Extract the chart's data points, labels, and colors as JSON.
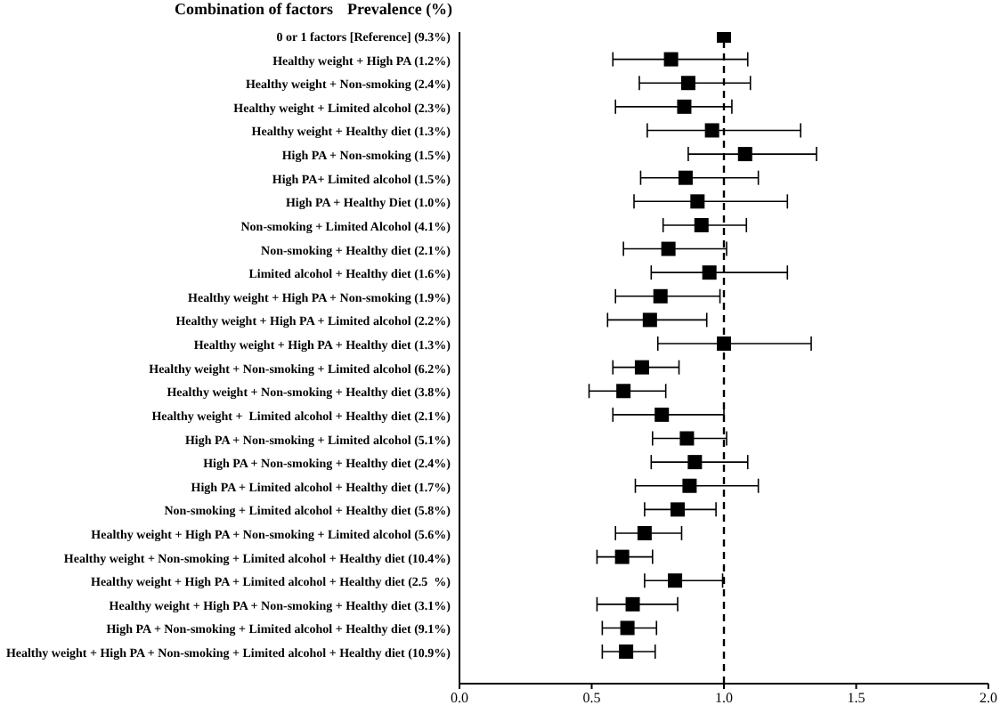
{
  "chart_data": {
    "type": "scatter",
    "orientation": "horizontal",
    "ylabel": "Combination of factors",
    "annotations": [
      "Prevalence (%)"
    ],
    "categories": [
      "0 or 1 factors [Reference] (9.3%)",
      "Healthy weight + High PA (1.2%)",
      "Healthy weight + Non-smoking (2.4%)",
      "Healthy weight + Limited alcohol (2.3%)",
      "Healthy weight + Healthy diet (1.3%)",
      "High PA + Non-smoking (1.5%)",
      "High PA+ Limited alcohol (1.5%)",
      "High PA + Healthy Diet (1.0%)",
      "Non-smoking + Limited Alcohol (4.1%)",
      "Non-smoking + Healthy diet (2.1%)",
      "Limited alcohol + Healthy diet (1.6%)",
      "Healthy weight + High PA + Non-smoking (1.9%)",
      "Healthy weight + High PA + Limited alcohol (2.2%)",
      "Healthy weight + High PA + Healthy diet (1.3%)",
      "Healthy weight + Non-smoking + Limited alcohol (6.2%)",
      "Healthy weight + Non-smoking + Healthy diet (3.8%)",
      "Healthy weight +  Limited alcohol + Healthy diet (2.1%)",
      "High PA + Non-smoking + Limited alcohol (5.1%)",
      "High PA + Non-smoking + Healthy diet (2.4%)",
      "High PA + Limited alcohol + Healthy diet (1.7%)",
      "Non-smoking + Limited alcohol + Healthy diet (5.8%)",
      "Healthy weight + High PA + Non-smoking + Limited alcohol (5.6%)",
      "Healthy weight + Non-smoking + Limited alcohol + Healthy diet (10.4%)",
      "Healthy weight + High PA + Limited alcohol + Healthy diet (2.5  %)",
      "Healthy weight + High PA + Non-smoking + Healthy diet (3.1%)",
      "High PA + Non-smoking + Limited alcohol + Healthy diet (9.1%)",
      "Healthy weight + High PA + Non-smoking + Limited alcohol + Healthy diet (10.9%)"
    ],
    "values": [
      1.0,
      0.8,
      0.865,
      0.85,
      0.955,
      1.08,
      0.855,
      0.9,
      0.915,
      0.79,
      0.945,
      0.76,
      0.72,
      1.0,
      0.69,
      0.62,
      0.765,
      0.86,
      0.89,
      0.87,
      0.825,
      0.7,
      0.615,
      0.815,
      0.655,
      0.635,
      0.63
    ],
    "errors": [
      null,
      [
        0.58,
        1.09
      ],
      [
        0.68,
        1.1
      ],
      [
        0.59,
        1.03
      ],
      [
        0.71,
        1.29
      ],
      [
        0.865,
        1.35
      ],
      [
        0.685,
        1.13
      ],
      [
        0.66,
        1.24
      ],
      [
        0.77,
        1.085
      ],
      [
        0.62,
        1.01
      ],
      [
        0.725,
        1.24
      ],
      [
        0.59,
        0.985
      ],
      [
        0.56,
        0.935
      ],
      [
        0.75,
        1.33
      ],
      [
        0.58,
        0.83
      ],
      [
        0.49,
        0.78
      ],
      [
        0.58,
        1.0
      ],
      [
        0.73,
        1.01
      ],
      [
        0.725,
        1.09
      ],
      [
        0.665,
        1.13
      ],
      [
        0.7,
        0.97
      ],
      [
        0.59,
        0.84
      ],
      [
        0.52,
        0.73
      ],
      [
        0.7,
        0.995
      ],
      [
        0.52,
        0.825
      ],
      [
        0.54,
        0.745
      ],
      [
        0.54,
        0.74
      ]
    ],
    "color": "#000000",
    "marker": "square",
    "xlim": [
      0,
      2
    ],
    "xticks": [
      {
        "value": 0,
        "label": "0.0"
      },
      {
        "value": 0.5,
        "label": "0.5"
      },
      {
        "value": 1,
        "label": "1.0"
      },
      {
        "value": 1.5,
        "label": "1.5"
      },
      {
        "value": 2,
        "label": "2.0"
      }
    ],
    "ref_lines": [
      {
        "axis": "x",
        "value": 1,
        "line_style": "dashed",
        "color": "#000000"
      }
    ],
    "grid": false,
    "legend": false
  }
}
